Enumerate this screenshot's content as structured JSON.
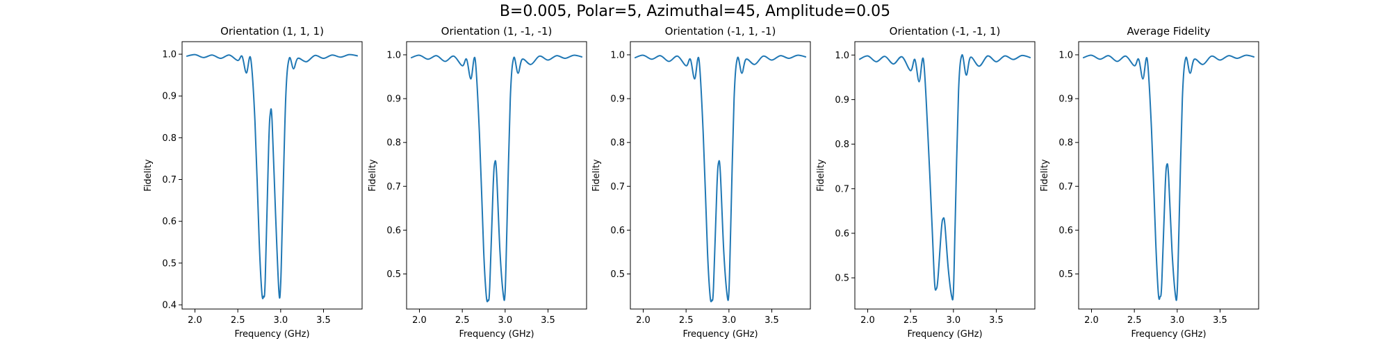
{
  "figure": {
    "suptitle": "B=0.005, Polar=5, Azimuthal=45, Amplitude=0.05"
  },
  "chart_data": [
    {
      "type": "line",
      "title": "Orientation (1, 1, 1)",
      "xlabel": "Frequency (GHz)",
      "ylabel": "Fidelity",
      "xlim": [
        1.85,
        3.95
      ],
      "ylim": [
        0.39,
        1.03
      ],
      "xticks": [
        "2.0",
        "2.5",
        "3.0",
        "3.5"
      ],
      "yticks": [
        "0.4",
        "0.5",
        "0.6",
        "0.7",
        "0.8",
        "0.9",
        "1.0"
      ],
      "grid": false,
      "series": [
        {
          "color": "#1f77b4",
          "x": [
            1.9,
            2.0,
            2.1,
            2.2,
            2.3,
            2.4,
            2.5,
            2.55,
            2.6,
            2.65,
            2.7,
            2.75,
            2.78,
            2.8,
            2.82,
            2.86,
            2.88,
            2.9,
            2.94,
            2.98,
            3.0,
            3.02,
            3.06,
            3.1,
            3.15,
            3.2,
            3.3,
            3.4,
            3.5,
            3.6,
            3.7,
            3.8,
            3.9
          ],
          "y": [
            0.995,
            0.999,
            0.992,
            0.998,
            0.99,
            0.998,
            0.985,
            0.995,
            0.955,
            0.99,
            0.84,
            0.55,
            0.43,
            0.42,
            0.46,
            0.78,
            0.86,
            0.84,
            0.62,
            0.43,
            0.45,
            0.6,
            0.9,
            0.99,
            0.965,
            0.99,
            0.982,
            0.997,
            0.99,
            0.998,
            0.993,
            0.999,
            0.996
          ]
        }
      ]
    },
    {
      "type": "line",
      "title": "Orientation (1, -1, -1)",
      "xlabel": "Frequency (GHz)",
      "ylabel": "Fidelity",
      "xlim": [
        1.85,
        3.95
      ],
      "ylim": [
        0.42,
        1.03
      ],
      "xticks": [
        "2.0",
        "2.5",
        "3.0",
        "3.5"
      ],
      "yticks": [
        "0.5",
        "0.6",
        "0.7",
        "0.8",
        "0.9",
        "1.0"
      ],
      "grid": false,
      "series": [
        {
          "color": "#1f77b4",
          "x": [
            1.9,
            2.0,
            2.1,
            2.2,
            2.3,
            2.4,
            2.5,
            2.55,
            2.6,
            2.65,
            2.7,
            2.75,
            2.78,
            2.8,
            2.82,
            2.86,
            2.88,
            2.9,
            2.94,
            2.98,
            3.0,
            3.02,
            3.06,
            3.1,
            3.15,
            3.2,
            3.3,
            3.4,
            3.5,
            3.6,
            3.7,
            3.8,
            3.9
          ],
          "y": [
            0.993,
            0.999,
            0.99,
            0.998,
            0.985,
            0.997,
            0.975,
            0.99,
            0.945,
            0.99,
            0.82,
            0.55,
            0.45,
            0.44,
            0.47,
            0.7,
            0.755,
            0.73,
            0.55,
            0.45,
            0.46,
            0.6,
            0.9,
            0.993,
            0.958,
            0.99,
            0.978,
            0.997,
            0.988,
            0.998,
            0.992,
            0.999,
            0.995
          ]
        }
      ]
    },
    {
      "type": "line",
      "title": "Orientation (-1, 1, -1)",
      "xlabel": "Frequency (GHz)",
      "ylabel": "Fidelity",
      "xlim": [
        1.85,
        3.95
      ],
      "ylim": [
        0.42,
        1.03
      ],
      "xticks": [
        "2.0",
        "2.5",
        "3.0",
        "3.5"
      ],
      "yticks": [
        "0.5",
        "0.6",
        "0.7",
        "0.8",
        "0.9",
        "1.0"
      ],
      "grid": false,
      "series": [
        {
          "color": "#1f77b4",
          "x": [
            1.9,
            2.0,
            2.1,
            2.2,
            2.3,
            2.4,
            2.5,
            2.55,
            2.6,
            2.65,
            2.7,
            2.75,
            2.78,
            2.8,
            2.82,
            2.86,
            2.88,
            2.9,
            2.94,
            2.98,
            3.0,
            3.02,
            3.06,
            3.1,
            3.15,
            3.2,
            3.3,
            3.4,
            3.5,
            3.6,
            3.7,
            3.8,
            3.9
          ],
          "y": [
            0.993,
            0.999,
            0.99,
            0.998,
            0.985,
            0.997,
            0.975,
            0.99,
            0.945,
            0.99,
            0.82,
            0.55,
            0.45,
            0.44,
            0.47,
            0.7,
            0.755,
            0.73,
            0.55,
            0.45,
            0.46,
            0.6,
            0.9,
            0.993,
            0.958,
            0.99,
            0.978,
            0.997,
            0.988,
            0.998,
            0.992,
            0.999,
            0.995
          ]
        }
      ]
    },
    {
      "type": "line",
      "title": "Orientation (-1, -1, 1)",
      "xlabel": "Frequency (GHz)",
      "ylabel": "Fidelity",
      "xlim": [
        1.85,
        3.95
      ],
      "ylim": [
        0.43,
        1.03
      ],
      "xticks": [
        "2.0",
        "2.5",
        "3.0",
        "3.5"
      ],
      "yticks": [
        "0.5",
        "0.6",
        "0.7",
        "0.8",
        "0.9",
        "1.0"
      ],
      "grid": false,
      "series": [
        {
          "color": "#1f77b4",
          "x": [
            1.9,
            2.0,
            2.1,
            2.2,
            2.3,
            2.4,
            2.5,
            2.55,
            2.6,
            2.65,
            2.7,
            2.75,
            2.78,
            2.8,
            2.82,
            2.86,
            2.88,
            2.9,
            2.94,
            2.98,
            3.0,
            3.02,
            3.06,
            3.1,
            3.15,
            3.2,
            3.3,
            3.4,
            3.5,
            3.6,
            3.7,
            3.8,
            3.9
          ],
          "y": [
            0.99,
            0.998,
            0.985,
            0.997,
            0.98,
            0.996,
            0.965,
            0.99,
            0.94,
            0.99,
            0.83,
            0.62,
            0.49,
            0.475,
            0.5,
            0.61,
            0.633,
            0.62,
            0.52,
            0.458,
            0.47,
            0.62,
            0.92,
            1.0,
            0.955,
            0.995,
            0.975,
            0.998,
            0.985,
            0.998,
            0.99,
            0.999,
            0.994
          ]
        }
      ]
    },
    {
      "type": "line",
      "title": "Average Fidelity",
      "xlabel": "Frequency (GHz)",
      "ylabel": "Fidelity",
      "xlim": [
        1.85,
        3.95
      ],
      "ylim": [
        0.42,
        1.03
      ],
      "xticks": [
        "2.0",
        "2.5",
        "3.0",
        "3.5"
      ],
      "yticks": [
        "0.5",
        "0.6",
        "0.7",
        "0.8",
        "0.9",
        "1.0"
      ],
      "grid": false,
      "series": [
        {
          "color": "#1f77b4",
          "x": [
            1.9,
            2.0,
            2.1,
            2.2,
            2.3,
            2.4,
            2.5,
            2.55,
            2.6,
            2.65,
            2.7,
            2.75,
            2.78,
            2.8,
            2.82,
            2.86,
            2.88,
            2.9,
            2.94,
            2.98,
            3.0,
            3.02,
            3.06,
            3.1,
            3.15,
            3.2,
            3.3,
            3.4,
            3.5,
            3.6,
            3.7,
            3.8,
            3.9
          ],
          "y": [
            0.993,
            0.999,
            0.99,
            0.998,
            0.985,
            0.997,
            0.975,
            0.99,
            0.945,
            0.99,
            0.83,
            0.57,
            0.455,
            0.448,
            0.48,
            0.7,
            0.75,
            0.72,
            0.55,
            0.45,
            0.46,
            0.6,
            0.9,
            0.993,
            0.958,
            0.99,
            0.978,
            0.997,
            0.988,
            0.998,
            0.992,
            0.999,
            0.995
          ]
        }
      ]
    }
  ]
}
